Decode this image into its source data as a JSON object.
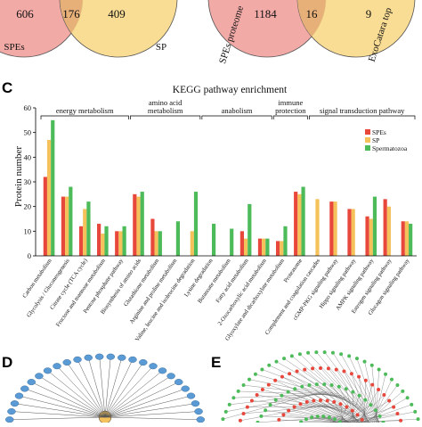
{
  "venn_a": {
    "left_value": "606",
    "center_value": "176",
    "right_value": "409",
    "left_label": "SPEs",
    "right_label": "SP"
  },
  "venn_b": {
    "left_value": "1184",
    "center_value": "16",
    "right_value": "9",
    "left_label": "SPEs proteome",
    "right_label": "ExoCatara top"
  },
  "panel_letters": {
    "c": "C",
    "d": "D",
    "e": "E"
  },
  "colors": {
    "SPEs": "#e8473c",
    "SP": "#f5c15a",
    "Spermatozoa": "#4dbb5a",
    "venn_left": "#f2aaa7",
    "venn_right": "#f8d98a",
    "venn_overlap": "#e8b079",
    "network_node": "#5b9bd5"
  },
  "chart_data": {
    "type": "bar",
    "title": "KEGG pathway enrichment",
    "ylabel": "Protein number",
    "xlabel": "",
    "ylim": [
      0,
      60
    ],
    "yticks": [
      "0",
      "10",
      "20",
      "30",
      "40",
      "50",
      "60"
    ],
    "legend_position": "top-right",
    "groups": [
      {
        "label": "energy metabolism",
        "start": 0,
        "end": 4
      },
      {
        "label": "amino acid metabolism",
        "start": 5,
        "end": 8
      },
      {
        "label": "anabolism",
        "start": 9,
        "end": 12
      },
      {
        "label": "immune protection",
        "start": 13,
        "end": 14
      },
      {
        "label": "signal transduction pathway",
        "start": 15,
        "end": 20
      }
    ],
    "categories": [
      "Carbon metabolism",
      "Glycolysis / Gluconeogenesis",
      "Citrate cycle (TCA cycle)",
      "Fructose and mannose metabolism",
      "Pentose phosphate pathway",
      "Biosynthesis of amino acids",
      "Glutathione metabolism",
      "Arginine and proline metabolism",
      "Valine, leucine and isoleucine degradation",
      "Lysine degradation",
      "Butanoate metabolism",
      "Fatty acid metabolism",
      "2-Oxocarboxylic acid metabolism",
      "Glyoxylate and dicarboxylate metabolism",
      "Proteasome",
      "Complement and coagulation cascades",
      "cGMP-PKG signaling pathway",
      "Hippo signaling pathway",
      "AMPK signaling pathway",
      "Estrogen signaling pathway",
      "Glucagon signaling pathway"
    ],
    "series": [
      {
        "name": "SPEs",
        "color": "#e8473c",
        "values": [
          32,
          24,
          12,
          13,
          10,
          25,
          15,
          0,
          0,
          0,
          0,
          10,
          7,
          6,
          26,
          0,
          22,
          19,
          16,
          23,
          14
        ]
      },
      {
        "name": "SP",
        "color": "#f5c15a",
        "values": [
          47,
          24,
          19,
          9,
          10,
          24,
          10,
          0,
          10,
          0,
          0,
          7,
          7,
          6,
          25,
          23,
          22,
          19,
          15,
          20,
          14
        ]
      },
      {
        "name": "Spermatozoa",
        "color": "#4dbb5a",
        "values": [
          55,
          28,
          22,
          12,
          12,
          26,
          10,
          14,
          26,
          13,
          11,
          21,
          7,
          12,
          28,
          0,
          0,
          0,
          24,
          0,
          13
        ]
      }
    ]
  }
}
